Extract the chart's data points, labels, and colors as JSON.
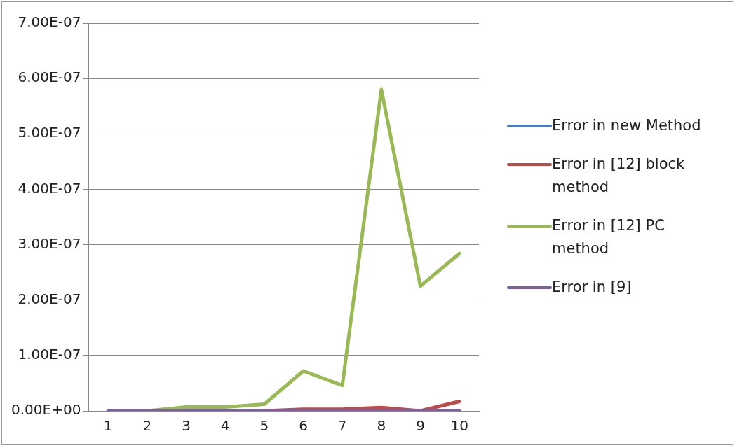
{
  "chart_data": {
    "type": "line",
    "categories": [
      "1",
      "2",
      "3",
      "4",
      "5",
      "6",
      "7",
      "8",
      "9",
      "10"
    ],
    "series": [
      {
        "name": "Error in new Method",
        "color": "#4a7ebb",
        "values": [
          null,
          null,
          null,
          null,
          null,
          null,
          null,
          null,
          null,
          null
        ]
      },
      {
        "name": "Error in [12] block method",
        "color": "#be4b48",
        "values": [
          null,
          null,
          null,
          null,
          0,
          3e-09,
          3e-09,
          6e-09,
          0,
          1.7e-08
        ]
      },
      {
        "name": "Error in [12] PC method",
        "color": "#98b954",
        "values": [
          null,
          0,
          7e-09,
          7e-09,
          1.2e-08,
          7.2e-08,
          4.6e-08,
          5.8e-07,
          2.25e-07,
          2.84e-07
        ]
      },
      {
        "name": "Error in [9]",
        "color": "#7d60a0",
        "values": [
          0,
          0,
          0,
          0,
          0,
          0,
          0,
          0,
          0,
          0
        ]
      }
    ],
    "ylim": [
      0,
      7e-07
    ],
    "yticks": [
      {
        "value": 0,
        "label": "0.00E+00"
      },
      {
        "value": 1e-07,
        "label": "1.00E-07"
      },
      {
        "value": 2e-07,
        "label": "2.00E-07"
      },
      {
        "value": 3e-07,
        "label": "3.00E-07"
      },
      {
        "value": 4e-07,
        "label": "4.00E-07"
      },
      {
        "value": 5e-07,
        "label": "5.00E-07"
      },
      {
        "value": 6e-07,
        "label": "6.00E-07"
      },
      {
        "value": 7e-07,
        "label": "7.00E-07"
      }
    ],
    "grid": "y",
    "legend": "right",
    "marker": "none",
    "line_style": "solid"
  }
}
